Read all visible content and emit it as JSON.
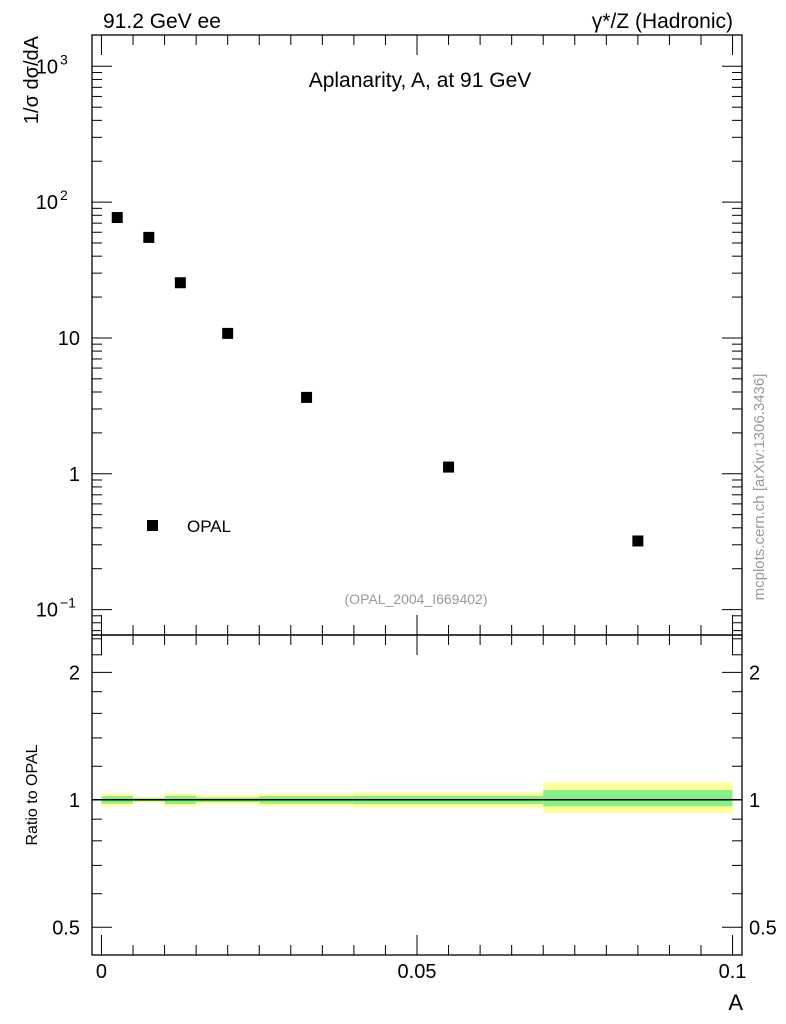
{
  "header": {
    "left": "91.2 GeV ee",
    "right": "γ*/Z (Hadronic)"
  },
  "side_label": "mcplots.cern.ch [arXiv:1306.3436]",
  "chart_data": [
    {
      "type": "scatter",
      "title": "Aplanarity, A, at 91 GeV",
      "ylabel": "1/σ  dσ/dA",
      "xlabel": "",
      "yscale": "log",
      "xlim": [
        -0.0015,
        0.1015
      ],
      "ylim": [
        0.065,
        1700
      ],
      "yticks": [
        {
          "value": 0.1,
          "base": "10",
          "exp": "−1"
        },
        {
          "value": 1,
          "base": "1",
          "exp": ""
        },
        {
          "value": 10,
          "base": "10",
          "exp": ""
        },
        {
          "value": 100,
          "base": "10",
          "exp": "2"
        },
        {
          "value": 1000,
          "base": "10",
          "exp": "3"
        }
      ],
      "legend": {
        "position": "bottom-left",
        "entries": [
          "OPAL"
        ]
      },
      "annotation": "(OPAL_2004_I669402)",
      "series": [
        {
          "name": "OPAL",
          "x": [
            0.0025,
            0.0075,
            0.0125,
            0.02,
            0.0325,
            0.055,
            0.085
          ],
          "y": [
            77,
            55,
            25.5,
            10.8,
            3.65,
            1.12,
            0.32
          ]
        }
      ]
    },
    {
      "type": "area",
      "ylabel": "Ratio to OPAL",
      "xlabel": "A",
      "xlim": [
        -0.0015,
        0.1015
      ],
      "ylim": [
        0.43,
        2.45
      ],
      "yscale": "log",
      "yticks": [
        {
          "value": 0.5,
          "label": "0.5"
        },
        {
          "value": 1,
          "label": "1"
        },
        {
          "value": 2,
          "label": "2"
        }
      ],
      "xticks": [
        {
          "value": 0,
          "label": "0"
        },
        {
          "value": 0.05,
          "label": "0.05"
        },
        {
          "value": 0.1,
          "label": "0.1"
        }
      ],
      "reference_line": 1,
      "bands": [
        {
          "x0": 0.0,
          "x1": 0.005,
          "outer": [
            0.965,
            1.035
          ],
          "inner": [
            0.98,
            1.02
          ]
        },
        {
          "x0": 0.005,
          "x1": 0.01,
          "outer": [
            0.985,
            1.015
          ],
          "inner": [
            0.992,
            1.008
          ]
        },
        {
          "x0": 0.01,
          "x1": 0.015,
          "outer": [
            0.965,
            1.035
          ],
          "inner": [
            0.978,
            1.022
          ]
        },
        {
          "x0": 0.015,
          "x1": 0.025,
          "outer": [
            0.975,
            1.025
          ],
          "inner": [
            0.988,
            1.012
          ]
        },
        {
          "x0": 0.025,
          "x1": 0.04,
          "outer": [
            0.965,
            1.035
          ],
          "inner": [
            0.98,
            1.02
          ]
        },
        {
          "x0": 0.04,
          "x1": 0.07,
          "outer": [
            0.96,
            1.04
          ],
          "inner": [
            0.978,
            1.022
          ]
        },
        {
          "x0": 0.07,
          "x1": 0.1,
          "outer": [
            0.93,
            1.1
          ],
          "inner": [
            0.965,
            1.055
          ]
        }
      ],
      "colors": {
        "outer_band": "#ffff99",
        "inner_band": "#88ee88",
        "line": "#000000"
      }
    }
  ]
}
